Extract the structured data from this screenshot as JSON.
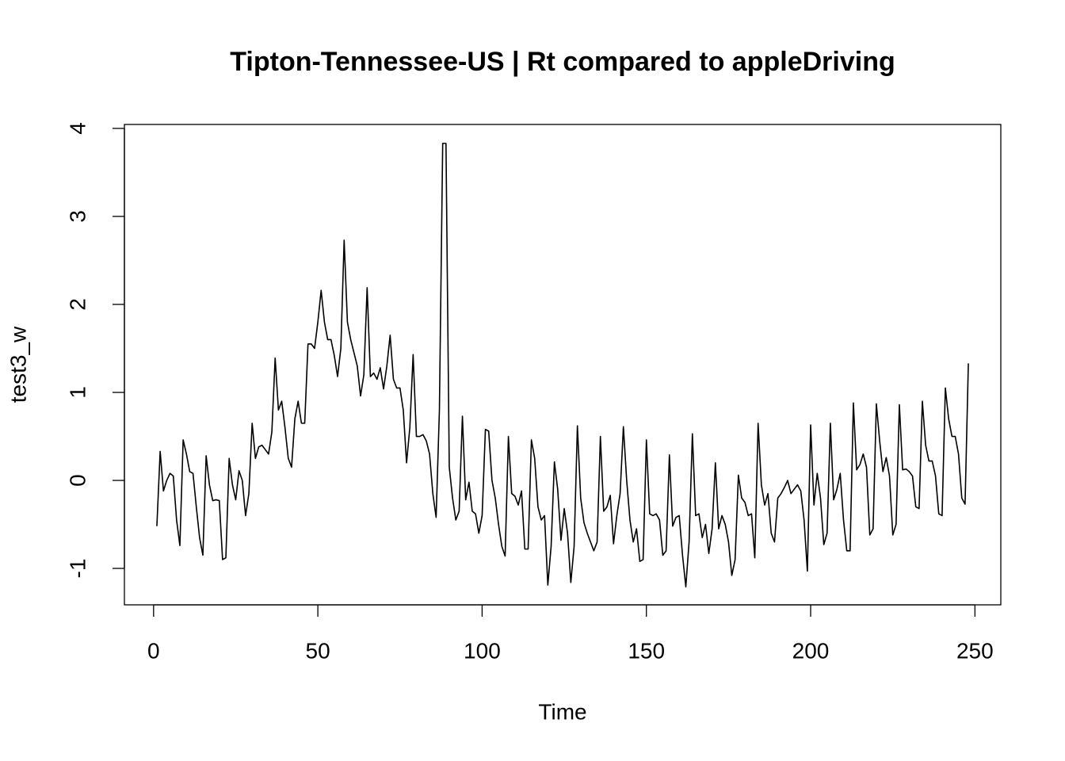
{
  "chart_data": {
    "type": "line",
    "title": "Tipton-Tennessee-US | Rt compared to appleDriving",
    "x_label": "Time",
    "y_label": "test3_w",
    "color": "#000000",
    "x": [
      1,
      2,
      3,
      4,
      5,
      6,
      7,
      8,
      9,
      10,
      11,
      12,
      13,
      14,
      15,
      16,
      17,
      18,
      19,
      20,
      21,
      22,
      23,
      24,
      25,
      26,
      27,
      28,
      29,
      30,
      31,
      32,
      33,
      34,
      35,
      36,
      37,
      38,
      39,
      40,
      41,
      42,
      43,
      44,
      45,
      46,
      47,
      48,
      49,
      50,
      51,
      52,
      53,
      54,
      55,
      56,
      57,
      58,
      59,
      60,
      61,
      62,
      63,
      64,
      65,
      66,
      67,
      68,
      69,
      70,
      71,
      72,
      73,
      74,
      75,
      76,
      77,
      78,
      79,
      80,
      81,
      82,
      83,
      84,
      85,
      86,
      87,
      88,
      89,
      90,
      91,
      92,
      93,
      94,
      95,
      96,
      97,
      98,
      99,
      100,
      101,
      102,
      103,
      104,
      105,
      106,
      107,
      108,
      109,
      110,
      111,
      112,
      113,
      114,
      115,
      116,
      117,
      118,
      119,
      120,
      121,
      122,
      123,
      124,
      125,
      126,
      127,
      128,
      129,
      130,
      131,
      132,
      133,
      134,
      135,
      136,
      137,
      138,
      139,
      140,
      141,
      142,
      143,
      144,
      145,
      146,
      147,
      148,
      149,
      150,
      151,
      152,
      153,
      154,
      155,
      156,
      157,
      158,
      159,
      160,
      161,
      162,
      163,
      164,
      165,
      166,
      167,
      168,
      169,
      170,
      171,
      172,
      173,
      174,
      175,
      176,
      177,
      178,
      179,
      180,
      181,
      182,
      183,
      184,
      185,
      186,
      187,
      188,
      189,
      190,
      191,
      192,
      193,
      194,
      195,
      196,
      197,
      198,
      199,
      200,
      201,
      202,
      203,
      204,
      205,
      206,
      207,
      208,
      209,
      210,
      211,
      212,
      213,
      214,
      215,
      216,
      217,
      218,
      219,
      220,
      221,
      222,
      223,
      224,
      225,
      226,
      227,
      228,
      229,
      230,
      231,
      232,
      233,
      234,
      235,
      236,
      237,
      238,
      239,
      240,
      241,
      242,
      243,
      244,
      245,
      246,
      247,
      248
    ],
    "values": [
      -0.52,
      0.33,
      -0.12,
      0,
      0.08,
      0.05,
      -0.45,
      -0.74,
      0.46,
      0.3,
      0.1,
      0.08,
      -0.3,
      -0.65,
      -0.85,
      0.28,
      -0.05,
      -0.23,
      -0.22,
      -0.23,
      -0.9,
      -0.88,
      0.25,
      -0.05,
      -0.22,
      0.11,
      0,
      -0.4,
      -0.15,
      0.65,
      0.25,
      0.38,
      0.4,
      0.35,
      0.3,
      0.55,
      1.39,
      0.8,
      0.9,
      0.6,
      0.25,
      0.15,
      0.7,
      0.9,
      0.65,
      0.65,
      1.55,
      1.55,
      1.5,
      1.8,
      2.16,
      1.8,
      1.6,
      1.6,
      1.42,
      1.18,
      1.5,
      2.73,
      1.8,
      1.6,
      1.45,
      1.3,
      0.96,
      1.2,
      2.19,
      1.18,
      1.22,
      1.15,
      1.28,
      1.04,
      1.3,
      1.65,
      1.15,
      1.05,
      1.05,
      0.8,
      0.2,
      0.6,
      1.43,
      0.5,
      0.5,
      0.52,
      0.45,
      0.3,
      -0.15,
      -0.42,
      0.8,
      3.83,
      3.83,
      0.15,
      -0.2,
      -0.45,
      -0.35,
      0.73,
      -0.22,
      -0.02,
      -0.35,
      -0.38,
      -0.6,
      -0.4,
      0.58,
      0.56,
      0,
      -0.2,
      -0.5,
      -0.75,
      -0.86,
      0.5,
      -0.15,
      -0.18,
      -0.28,
      -0.12,
      -0.78,
      -0.78,
      0.46,
      0.25,
      -0.3,
      -0.45,
      -0.4,
      -1.19,
      -0.75,
      0.21,
      -0.1,
      -0.68,
      -0.32,
      -0.6,
      -1.16,
      -0.75,
      0.62,
      -0.2,
      -0.48,
      -0.6,
      -0.7,
      -0.8,
      -0.7,
      0.5,
      -0.35,
      -0.3,
      -0.17,
      -0.72,
      -0.4,
      -0.15,
      0.61,
      0,
      -0.45,
      -0.7,
      -0.55,
      -0.92,
      -0.9,
      0.46,
      -0.38,
      -0.4,
      -0.38,
      -0.45,
      -0.85,
      -0.8,
      0.29,
      -0.52,
      -0.42,
      -0.4,
      -0.85,
      -1.21,
      -0.7,
      0.53,
      -0.4,
      -0.38,
      -0.65,
      -0.5,
      -0.83,
      -0.55,
      0.2,
      -0.55,
      -0.4,
      -0.5,
      -0.7,
      -1.08,
      -0.9,
      0.06,
      -0.2,
      -0.25,
      -0.4,
      -0.38,
      -0.88,
      0.65,
      -0.05,
      -0.28,
      -0.15,
      -0.6,
      -0.7,
      -0.2,
      -0.15,
      -0.08,
      0,
      -0.15,
      -0.1,
      -0.05,
      -0.12,
      -0.45,
      -1.03,
      0.63,
      -0.28,
      0.08,
      -0.2,
      -0.73,
      -0.6,
      0.65,
      -0.22,
      -0.1,
      0.08,
      -0.45,
      -0.8,
      -0.8,
      0.88,
      0.12,
      0.18,
      0.3,
      0.15,
      -0.62,
      -0.55,
      0.87,
      0.45,
      0.1,
      0.26,
      0.05,
      -0.62,
      -0.5,
      0.86,
      0.12,
      0.13,
      0.1,
      0.05,
      -0.3,
      -0.32,
      0.9,
      0.4,
      0.22,
      0.22,
      0.05,
      -0.38,
      -0.4,
      1.05,
      0.7,
      0.5,
      0.5,
      0.3,
      -0.2,
      -0.27,
      1.33
    ],
    "xlim": [
      -8.88,
      257.88
    ],
    "xticks": [
      0,
      50,
      100,
      150,
      200,
      250
    ],
    "ylim": [
      -1.414,
      4.045
    ],
    "yticks": [
      -1,
      0,
      1,
      2,
      3,
      4
    ]
  }
}
